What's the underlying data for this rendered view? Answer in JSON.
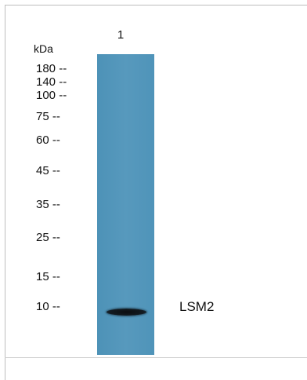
{
  "lane_label": "1",
  "unit_label": "kDa",
  "markers": [
    {
      "label": "180 --",
      "kda": 180
    },
    {
      "label": "140 --",
      "kda": 140
    },
    {
      "label": "100 --",
      "kda": 100
    },
    {
      "label": "75 --",
      "kda": 75
    },
    {
      "label": "60 --",
      "kda": 60
    },
    {
      "label": "45 --",
      "kda": 45
    },
    {
      "label": "35 --",
      "kda": 35
    },
    {
      "label": "25 --",
      "kda": 25
    },
    {
      "label": "15 --",
      "kda": 15
    },
    {
      "label": "10 --",
      "kda": 10
    }
  ],
  "band_label": "LSM2",
  "band_kda": 10,
  "colors": {
    "lane": "#5498bc",
    "band": "#111417",
    "text": "#111111"
  }
}
